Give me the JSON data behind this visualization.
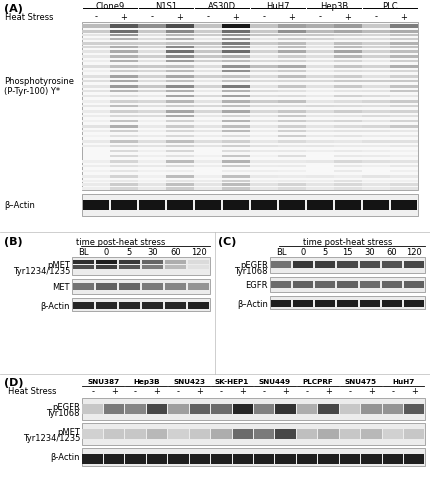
{
  "panel_A": {
    "label": "(A)",
    "cell_lines": [
      "Clone9",
      "N1S1",
      "AS30D",
      "HuH7",
      "Hep3B",
      "PLC"
    ],
    "heat_stress_row": [
      "-",
      "+",
      "-",
      "+",
      "-",
      "+",
      "-",
      "+",
      "-",
      "+",
      "-",
      "+"
    ],
    "y_label1": "Phosphotyrosine",
    "y_label2": "(P-Tyr-100) Y*",
    "loading_label": "β–Actin",
    "blot_bg": "#f5f5f5",
    "actin_bg": "#f0f0f0",
    "lane_intensities": [
      0.3,
      0.72,
      0.38,
      0.88,
      0.38,
      0.95,
      0.42,
      0.62,
      0.38,
      0.55,
      0.38,
      0.5
    ]
  },
  "panel_B": {
    "label": "(B)",
    "title": "time post-heat stress",
    "time_labels": [
      "BL",
      "0",
      "5",
      "30",
      "60",
      "120"
    ],
    "blot_bg": "#e8e8e8",
    "pmet_ints": [
      0.82,
      0.88,
      0.78,
      0.6,
      0.32,
      0.14
    ],
    "met_ints": [
      0.55,
      0.62,
      0.6,
      0.52,
      0.48,
      0.42
    ],
    "actin_ints": [
      0.85,
      0.85,
      0.85,
      0.85,
      0.85,
      0.87
    ]
  },
  "panel_C": {
    "label": "(C)",
    "title": "time post-heat stress",
    "time_labels": [
      "BL",
      "0",
      "5",
      "15",
      "30",
      "60",
      "120"
    ],
    "blot_bg": "#e8e8e8",
    "pegfr_ints": [
      0.55,
      0.78,
      0.76,
      0.72,
      0.7,
      0.68,
      0.72
    ],
    "egfr_ints": [
      0.58,
      0.62,
      0.6,
      0.62,
      0.58,
      0.6,
      0.62
    ],
    "actin_ints": [
      0.88,
      0.88,
      0.88,
      0.88,
      0.88,
      0.88,
      0.88
    ]
  },
  "panel_D": {
    "label": "(D)",
    "cell_lines": [
      "SNU387",
      "Hep3B",
      "SNU423",
      "SK-HEP1",
      "SNU449",
      "PLCPRF",
      "SNU475",
      "HuH7"
    ],
    "heat_stress_row": [
      "-",
      "+",
      "-",
      "+",
      "-",
      "+",
      "-",
      "+",
      "-",
      "+",
      "-",
      "+",
      "-",
      "+",
      "-",
      "+"
    ],
    "blot_bg": "#e8e8e8",
    "pegfr_ints": [
      0.22,
      0.52,
      0.48,
      0.72,
      0.38,
      0.62,
      0.58,
      0.85,
      0.5,
      0.8,
      0.32,
      0.72,
      0.22,
      0.42,
      0.42,
      0.65
    ],
    "pmet_ints": [
      0.18,
      0.22,
      0.22,
      0.28,
      0.18,
      0.22,
      0.32,
      0.58,
      0.52,
      0.72,
      0.25,
      0.32,
      0.22,
      0.28,
      0.18,
      0.22
    ],
    "actin_ints": [
      0.88,
      0.88,
      0.88,
      0.88,
      0.88,
      0.88,
      0.88,
      0.88,
      0.88,
      0.88,
      0.88,
      0.88,
      0.88,
      0.88,
      0.88,
      0.88
    ]
  },
  "figure_bg": "#ffffff",
  "font_size_small": 6.0,
  "font_size_panel": 8.0
}
